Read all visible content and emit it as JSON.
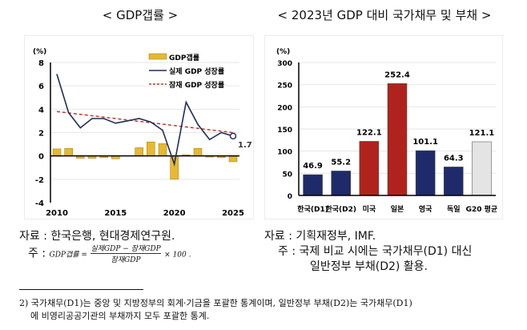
{
  "chart_data": [
    {
      "type": "bar+line",
      "title": "< GDP갭률 >",
      "ylabel": "(%)",
      "ylim": [
        -4,
        8
      ],
      "yticks": [
        -4,
        -2,
        0,
        2,
        4,
        6,
        8
      ],
      "xticks": [
        2010,
        2015,
        2020,
        2025
      ],
      "x": [
        2010,
        2011,
        2012,
        2013,
        2014,
        2015,
        2016,
        2017,
        2018,
        2019,
        2020,
        2021,
        2022,
        2023,
        2024,
        2025
      ],
      "series": [
        {
          "name": "GDP갭률",
          "kind": "bar",
          "color": "#e8b830",
          "values": [
            0.6,
            0.65,
            -0.2,
            -0.2,
            -0.15,
            -0.25,
            0,
            0.7,
            1.2,
            1.05,
            -2.0,
            0.1,
            0.65,
            -0.1,
            -0.15,
            -0.5
          ]
        },
        {
          "name": "실제 GDP 성장률",
          "kind": "line",
          "color": "#1f2d5c",
          "values": [
            7.0,
            3.7,
            2.4,
            3.2,
            3.2,
            2.8,
            3.0,
            3.2,
            2.9,
            2.2,
            -0.7,
            4.6,
            2.7,
            1.4,
            2.0,
            1.7
          ]
        },
        {
          "name": "잠재 GDP 성장률",
          "kind": "dashed-line",
          "color": "#c0392b",
          "values": [
            3.8,
            3.68,
            3.56,
            3.44,
            3.32,
            3.2,
            3.08,
            2.96,
            2.84,
            2.72,
            2.6,
            2.48,
            2.36,
            2.24,
            2.12,
            2.0
          ]
        }
      ],
      "annotation": "1.7",
      "grid": true,
      "legend": "top-right"
    },
    {
      "type": "bar",
      "title": "< 2023년 GDP 대비 국가채무 및 부채 >",
      "ylabel": "(%)",
      "ylim": [
        0,
        300
      ],
      "yticks": [
        0,
        50,
        100,
        150,
        200,
        250,
        300
      ],
      "categories": [
        "한국(D1)",
        "한국(D2)",
        "미국",
        "일본",
        "영국",
        "독일",
        "G20 평균"
      ],
      "values": [
        46.9,
        55.2,
        122.1,
        252.4,
        101.1,
        64.3,
        121.1
      ],
      "labels": [
        "46.9",
        "55.2",
        "122.1",
        "252.4",
        "101.1",
        "64.3",
        "121.1"
      ],
      "colors": [
        "#1f2a6b",
        "#1f2a6b",
        "#b0231c",
        "#b0231c",
        "#1f2a6b",
        "#1f2a6b",
        "#e4e4e4"
      ],
      "grid": true
    }
  ],
  "notes": {
    "left_source": "자료 : 한국은행, 현대경제연구원.",
    "left_note_label": "주 :",
    "left_formula_lhs": "GDP갭률 =",
    "left_formula_num": "실제GDP − 잠재GDP",
    "left_formula_den": "잠재GDP",
    "left_formula_rhs": "× 100 .",
    "right_source": "자료 : 기획재정부, IMF.",
    "right_note_1": "주 : 국제 비교 시에는 국가채무(D1) 대신",
    "right_note_2": "일반정부 부채(D2) 활용.",
    "footnote_1": "2) 국가채무(D1)는 중앙 및 지방정부의 회계·기금을 포괄한 통계이며, 일반정부 부채(D2)는 국가채무(D1)",
    "footnote_2": "에 비영리공공기관의 부채까지 모두 포괄한 통계."
  }
}
